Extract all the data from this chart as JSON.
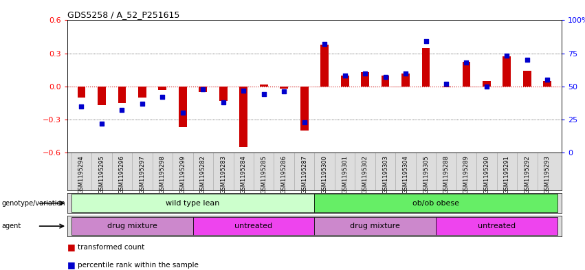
{
  "title": "GDS5258 / A_52_P251615",
  "samples": [
    "GSM1195294",
    "GSM1195295",
    "GSM1195296",
    "GSM1195297",
    "GSM1195298",
    "GSM1195299",
    "GSM1195282",
    "GSM1195283",
    "GSM1195284",
    "GSM1195285",
    "GSM1195286",
    "GSM1195287",
    "GSM1195300",
    "GSM1195301",
    "GSM1195302",
    "GSM1195303",
    "GSM1195304",
    "GSM1195305",
    "GSM1195288",
    "GSM1195289",
    "GSM1195290",
    "GSM1195291",
    "GSM1195292",
    "GSM1195293"
  ],
  "red_values": [
    -0.1,
    -0.17,
    -0.15,
    -0.1,
    -0.03,
    -0.37,
    -0.05,
    -0.13,
    -0.55,
    0.02,
    -0.02,
    -0.4,
    0.38,
    0.1,
    0.13,
    0.1,
    0.12,
    0.35,
    -0.01,
    0.22,
    0.05,
    0.27,
    0.14,
    0.05
  ],
  "blue_values": [
    35,
    22,
    32,
    37,
    42,
    30,
    48,
    38,
    47,
    44,
    46,
    23,
    82,
    58,
    60,
    57,
    60,
    84,
    52,
    68,
    50,
    73,
    70,
    55
  ],
  "genotype_groups": [
    {
      "label": "wild type lean",
      "start": 0,
      "end": 11,
      "color": "#ccffcc"
    },
    {
      "label": "ob/ob obese",
      "start": 12,
      "end": 23,
      "color": "#66ee66"
    }
  ],
  "agent_groups": [
    {
      "label": "drug mixture",
      "start": 0,
      "end": 5,
      "color": "#cc88cc"
    },
    {
      "label": "untreated",
      "start": 6,
      "end": 11,
      "color": "#ee44ee"
    },
    {
      "label": "drug mixture",
      "start": 12,
      "end": 17,
      "color": "#cc88cc"
    },
    {
      "label": "untreated",
      "start": 18,
      "end": 23,
      "color": "#ee44ee"
    }
  ],
  "ylim": [
    -0.6,
    0.6
  ],
  "y2lim": [
    0,
    100
  ],
  "yticks": [
    -0.6,
    -0.3,
    0.0,
    0.3,
    0.6
  ],
  "y2ticks": [
    0,
    25,
    50,
    75,
    100
  ],
  "y2ticklabels": [
    "0",
    "25",
    "50",
    "75",
    "100%"
  ],
  "hlines": [
    -0.3,
    0.0,
    0.3
  ],
  "red_color": "#cc0000",
  "blue_color": "#0000cc",
  "bar_width": 0.4,
  "marker_size": 5
}
